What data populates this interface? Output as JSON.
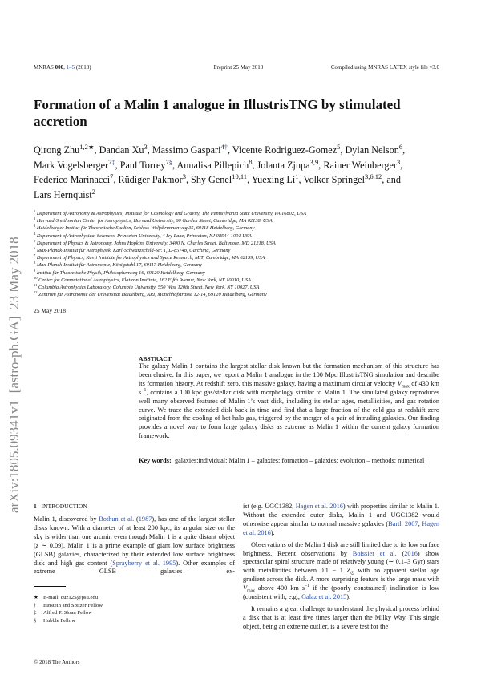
{
  "header": {
    "left": [
      "MNRAS ",
      {
        "text": "000",
        "bold": true
      },
      ", ",
      {
        "text": "1–5",
        "link": true
      },
      " (2018)"
    ],
    "center": "Preprint 25 May 2018",
    "right": "Compiled using MNRAS LATEX style file v3.0"
  },
  "title": "Formation of a Malin 1 analogue in IllustrisTNG by stimulated accretion",
  "authors": [
    "Qirong Zhu",
    {
      "text": "1,2★",
      "sup": true
    },
    ", Dandan Xu",
    {
      "text": "3",
      "sup": true
    },
    ", Massimo Gaspari",
    {
      "text": "4",
      "sup": true
    },
    {
      "text": "†",
      "sup": true,
      "link": true
    },
    ", Vicente Rodriguez-Gomez",
    {
      "text": "5",
      "sup": true
    },
    ", Dylan Nelson",
    {
      "text": "6",
      "sup": true
    },
    ", Mark Vogelsberger",
    {
      "text": "7",
      "sup": true
    },
    {
      "text": "‡",
      "sup": true,
      "link": true
    },
    ", Paul Torrey",
    {
      "text": "7",
      "sup": true
    },
    {
      "text": "§",
      "sup": true,
      "link": true
    },
    ", Annalisa Pillepich",
    {
      "text": "8",
      "sup": true
    },
    ", Jolanta Zjupa",
    {
      "text": "3,9",
      "sup": true
    },
    ", Rainer Weinberger",
    {
      "text": "3",
      "sup": true
    },
    ", Federico Marinacci",
    {
      "text": "7",
      "sup": true
    },
    ", Rüdiger Pakmor",
    {
      "text": "3",
      "sup": true
    },
    ", Shy Genel",
    {
      "text": "10,11",
      "sup": true
    },
    ", Yuexing Li",
    {
      "text": "1",
      "sup": true
    },
    ", Volker Springel",
    {
      "text": "3,6,12",
      "sup": true
    },
    ", and Lars Hernquist",
    {
      "text": "2",
      "sup": true
    }
  ],
  "affiliations": [
    {
      "num": "1",
      "text": "Department of Astronomy & Astrophysics; Institute for Cosmology and Gravity, The Pennsylvania State University, PA 16802, USA"
    },
    {
      "num": "2",
      "text": "Harvard-Smithsonian Center for Astrophysics, Harvard University, 60 Garden Street, Cambridge, MA 02138, USA"
    },
    {
      "num": "3",
      "text": "Heidelberger Institut für Theoretische Studien, Schloss-Wolfsbrunnenweg 35, 69118 Heidelberg, Germany"
    },
    {
      "num": "4",
      "text": "Department of Astrophysical Sciences, Princeton University, 4 Ivy Lane, Princeton, NJ 08544-1001 USA"
    },
    {
      "num": "5",
      "text": "Department of Physics & Astronomy, Johns Hopkins University, 3400 N. Charles Street, Baltimore, MD 21218, USA"
    },
    {
      "num": "6",
      "text": "Max-Planck-Institut für Astrophysik, Karl-Schwarzschild-Str. 1, D-85748, Garching, Germany"
    },
    {
      "num": "7",
      "text": "Department of Physics, Kavli Institute for Astrophysics and Space Research, MIT, Cambridge, MA 02139, USA"
    },
    {
      "num": "8",
      "text": "Max-Planck-Institut für Astronomie, Königstuhl 17, 69117 Heidelberg, Germany"
    },
    {
      "num": "9",
      "text": "Institut für Theoretische Physik, Philosophenweg 16, 69120 Heidelberg, Germany"
    },
    {
      "num": "10",
      "text": "Center for Computational Astrophysics, Flatiron Institute, 162 Fifth Avenue, New York, NY 10010, USA"
    },
    {
      "num": "11",
      "text": "Columbia Astrophysics Laboratory, Columbia University, 550 West 120th Street, New York, NY 10027, USA"
    },
    {
      "num": "12",
      "text": "Zentrum für Astronomie der Universität Heidelberg, ARI, Mönchhofstrasse 12-14, 69120 Heidelberg, Germany"
    }
  ],
  "date": "25 May 2018",
  "abstract": {
    "heading": "ABSTRACT",
    "text": [
      "The galaxy Malin 1 contains the largest stellar disk known but the formation mechanism of this structure has been elusive. In this paper, we report a Malin 1 analogue in the 100 Mpc IllustrisTNG simulation and describe its formation history. At redshift zero, this massive galaxy, having a maximum circular velocity ",
      {
        "text": "V",
        "italic": true
      },
      {
        "text": "max",
        "sub": true
      },
      " of 430 km s",
      {
        "text": "−1",
        "sup": true
      },
      ", contains a 100 kpc gas/stellar disk with morphology similar to Malin 1. The simulated galaxy reproduces well many observed features of Malin 1’s vast disk, including its stellar ages, metallicities, and gas rotation curve. We trace the extended disk back in time and find that a large fraction of the cold gas at redshift zero originated from the cooling of hot halo gas, triggered by the merger of a pair of intruding galaxies. Our finding provides a novel way to form large galaxy disks as extreme as Malin 1 within the current galaxy formation framework."
    ]
  },
  "keywords": {
    "label": "Key words:",
    "text": "galaxies:individual: Malin 1 – galaxies: formation – galaxies: evolution – methods: numerical"
  },
  "arxiv": "arXiv:1805.09341v1  [astro-ph.GA]  23 May 2018",
  "section": {
    "number": "1",
    "title": "INTRODUCTION"
  },
  "left_paragraph": [
    "Malin 1, discovered by ",
    {
      "text": "Bothun et al.",
      "link": true
    },
    " (",
    {
      "text": "1987",
      "link": true
    },
    "), has one of the largest stellar disks known. With a diameter of at least 200 kpc, its angular size on the sky is wider than one arcmin even though Malin 1 is a quite distant object (",
    {
      "text": "z",
      "italic": true
    },
    " ∼ 0.09). Malin 1 is a prime example of giant low surface brightness (GLSB) galaxies, characterized by their extended low surface brightness disk and high gas content (",
    {
      "text": "Sprayberry et al. 1995",
      "link": true
    },
    "). Other examples of extreme GLSB galaxies ex-"
  ],
  "right_paragraphs": [
    [
      "ist (e.g. UGC1382, ",
      {
        "text": "Hagen et al. 2016",
        "link": true
      },
      ") with properties similar to Malin 1. Without the extended outer disks, Malin 1 and UGC1382 would otherwise appear similar to normal massive galaxies (",
      {
        "text": "Barth 2007",
        "link": true
      },
      "; ",
      {
        "text": "Hagen et al. 2016",
        "link": true
      },
      ")."
    ],
    [
      "Observations of the Malin 1 disk are still limited due to its low surface brightness. Recent observations by ",
      {
        "text": "Boissier et al.",
        "link": true
      },
      " (",
      {
        "text": "2016",
        "link": true
      },
      ") show spectacular spiral structure made of relatively young (∼ 0.1–3 Gyr) stars with metallicities between 0.1 − 1 ",
      {
        "text": "Z",
        "italic": true
      },
      {
        "text": "⊙",
        "sub": true
      },
      " with no apparent stellar age gradient across the disk. A more surprising feature is the large mass with ",
      {
        "text": "V",
        "italic": true
      },
      {
        "text": "max",
        "sub": true
      },
      " above 400 km s",
      {
        "text": "−1",
        "sup": true
      },
      " if the (poorly constrained) inclination is low (consistent with, e.g., ",
      {
        "text": "Galaz et al. 2015",
        "link": true
      },
      ")."
    ],
    [
      "It remains a great challenge to understand the physical process behind a disk that is at least five times larger than the Milky Way. This single object, being an extreme outlier, is a severe test for the"
    ]
  ],
  "footnotes": [
    {
      "mark": "★",
      "text": "E-mail: quz125@psu.edu"
    },
    {
      "mark": "†",
      "text": "Einstein and Spitzer Fellow"
    },
    {
      "mark": "‡",
      "text": "Alfred P. Sloan Fellow"
    },
    {
      "mark": "§",
      "text": "Hubble Fellow"
    }
  ],
  "copyright": "© 2018 The Authors"
}
